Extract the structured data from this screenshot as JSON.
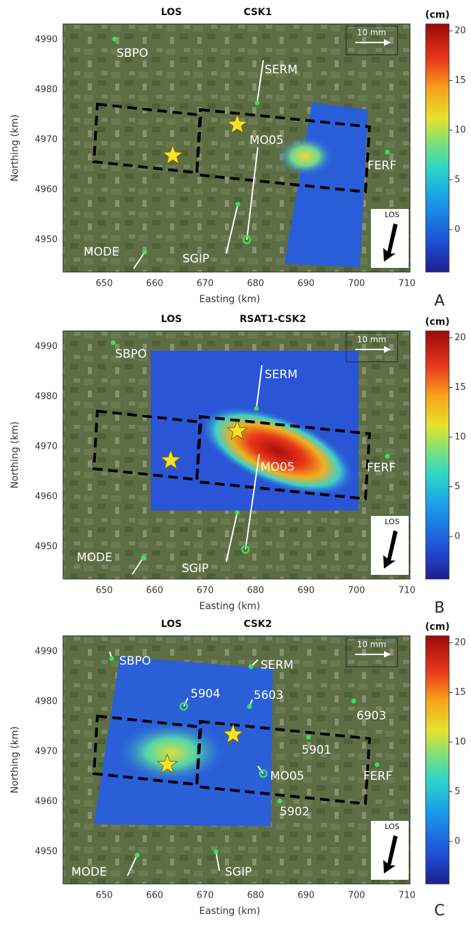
{
  "panels": [
    {
      "title_left": "LOS",
      "title_right": "CSK1",
      "y_label": "Northing (km)",
      "x_label": "Easting (km)",
      "y_ticks": [
        4990,
        4980,
        4970,
        4960,
        4950
      ],
      "x_ticks": [
        650,
        660,
        670,
        680,
        690,
        700,
        710
      ],
      "stations": [
        "SBPO",
        "SERM",
        "MO05",
        "FERF",
        "MODE",
        "SGIP"
      ],
      "scale_label": "10 mm",
      "los_label": "LOS",
      "colorbar_unit": "(cm)",
      "colorbar_ticks": [
        20,
        15,
        10,
        5,
        0
      ],
      "panel_letter": "A"
    },
    {
      "title_left": "LOS",
      "title_right": "RSAT1-CSK2",
      "y_label": "Northing (km)",
      "x_label": "Easting (km)",
      "y_ticks": [
        4990,
        4980,
        4970,
        4960,
        4950
      ],
      "x_ticks": [
        650,
        660,
        670,
        680,
        690,
        700,
        710
      ],
      "stations": [
        "SBPO",
        "SERM",
        "MO05",
        "FERF",
        "MODE",
        "SGIP"
      ],
      "scale_label": "10 mm",
      "los_label": "LOS",
      "colorbar_unit": "(cm)",
      "colorbar_ticks": [
        20,
        15,
        10,
        5,
        0
      ],
      "panel_letter": "B"
    },
    {
      "title_left": "LOS",
      "title_right": "CSK2",
      "y_label": "Northing (km)",
      "x_label": "Easting (km)",
      "y_ticks": [
        4990,
        4980,
        4970,
        4960,
        4950
      ],
      "x_ticks": [
        650,
        660,
        670,
        680,
        690,
        700,
        710
      ],
      "stations": [
        "SBPO",
        "SERM",
        "5904",
        "5603",
        "6903",
        "5901",
        "MO05",
        "FERF",
        "5902",
        "MODE",
        "SGIP"
      ],
      "scale_label": "10 mm",
      "los_label": "LOS",
      "colorbar_unit": "(cm)",
      "colorbar_ticks": [
        20,
        15,
        10,
        5,
        0
      ],
      "panel_letter": "C"
    }
  ]
}
